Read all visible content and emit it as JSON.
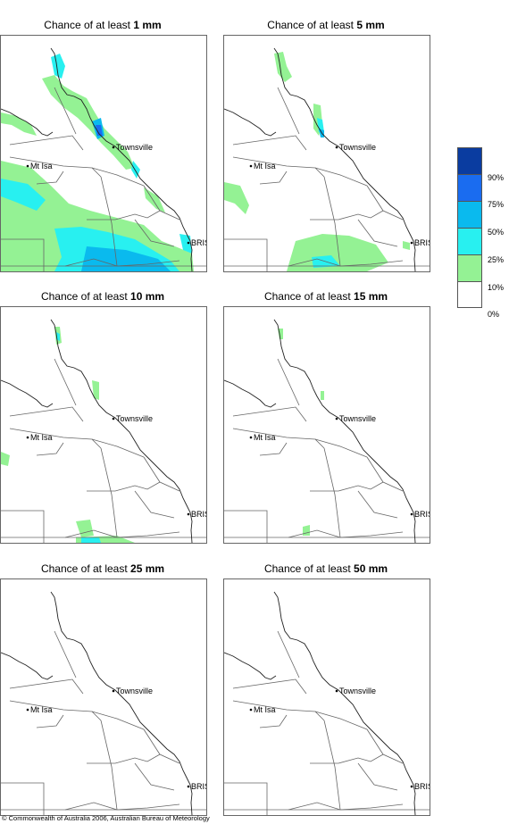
{
  "panels": [
    {
      "prefix": "Chance of at least ",
      "amount": "1 mm"
    },
    {
      "prefix": "Chance of at least ",
      "amount": "5 mm"
    },
    {
      "prefix": "Chance of at least ",
      "amount": "10 mm"
    },
    {
      "prefix": "Chance of at least ",
      "amount": "15 mm"
    },
    {
      "prefix": "Chance of at least ",
      "amount": "25 mm"
    },
    {
      "prefix": "Chance of at least ",
      "amount": "50 mm"
    }
  ],
  "places": {
    "townsville": "Townsville",
    "mt_isa": "Mt Isa",
    "bris": "BRIS"
  },
  "legend": {
    "labels": [
      "90%",
      "75%",
      "50%",
      "25%",
      "10%",
      "0%"
    ],
    "colors": [
      "#0a3ca0",
      "#1a6cf0",
      "#0abaee",
      "#28f0f0",
      "#94f294",
      "#ffffff"
    ]
  },
  "copyright": "© Commonwealth of Australia 2006, Australian Bureau of Meteorology"
}
